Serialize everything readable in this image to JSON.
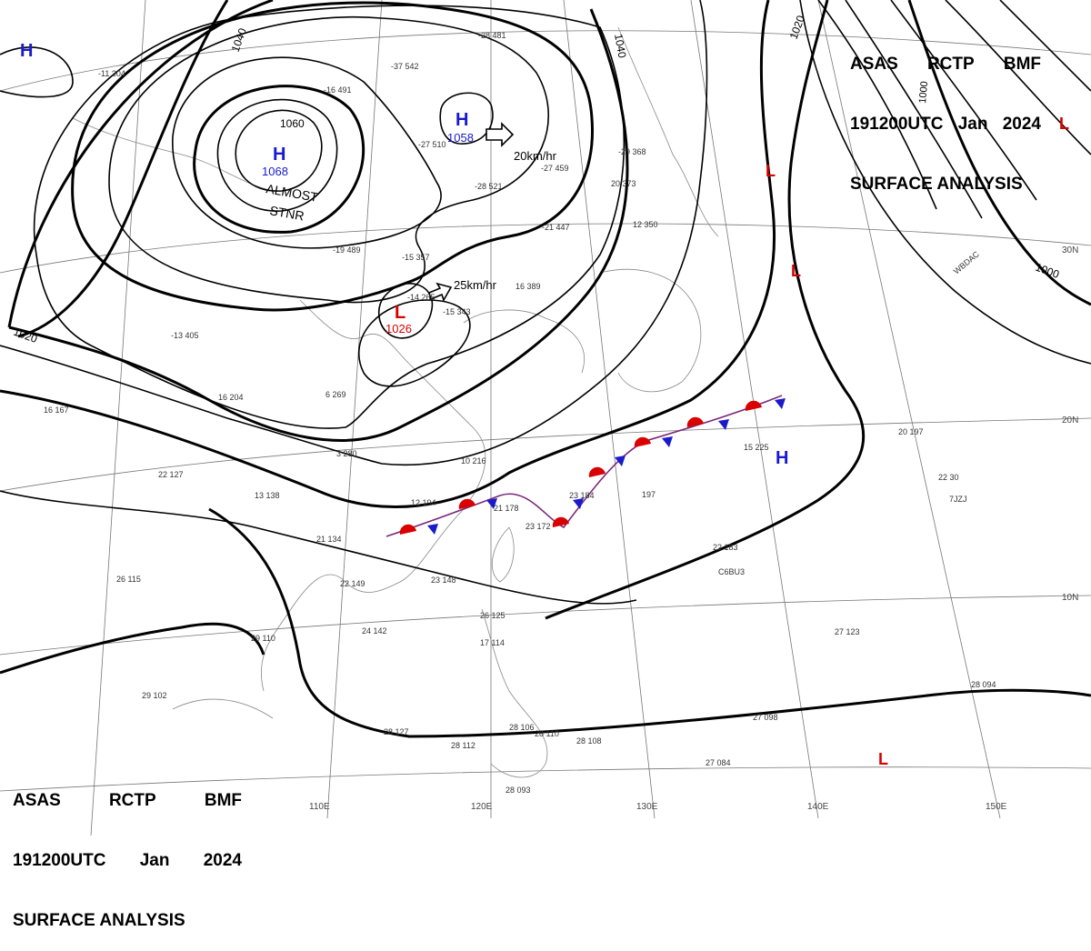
{
  "header": {
    "line1": [
      "ASAS",
      "RCTP",
      "BMF"
    ],
    "line2": [
      "191200UTC",
      "Jan",
      "2024"
    ],
    "line3": "SURFACE ANALYSIS"
  },
  "isobar_labels": [
    "1040",
    "1040",
    "1020",
    "1020",
    "1000",
    "1000",
    "1060"
  ],
  "pressure_centers": {
    "H_main": {
      "letter": "H",
      "value": "1068",
      "note1": "ALMOST",
      "note2": "STNR"
    },
    "H_north": {
      "letter": "H",
      "value": "1058",
      "motion": "20km/hr"
    },
    "L_mid": {
      "letter": "L",
      "value": "1026",
      "motion": "25km/hr"
    },
    "H_topleft": {
      "letter": "H"
    },
    "H_east": {
      "letter": "H"
    },
    "L_marks": [
      "L",
      "L",
      "L",
      "L"
    ]
  },
  "lat_labels": [
    "30N",
    "20N",
    "10N"
  ],
  "lon_labels": [
    "110E",
    "120E",
    "130E",
    "140E",
    "150E"
  ],
  "stations": [
    "-11 304",
    "-37 542",
    "-16 491",
    "-27 510",
    "-28 521",
    "-28 481",
    "-29 368",
    "-27 459",
    "20 373",
    "-21 447",
    "12 350",
    "16 389",
    "-19 489",
    "-15 357",
    "-14 265",
    "-15 343",
    "-13 405",
    "6 269",
    "16 204",
    "3 280",
    "10 216",
    "12 194",
    "21 178",
    "23 184",
    "23 172",
    "197",
    "15 225",
    "20 197",
    "22 127",
    "16 167",
    "13 138",
    "21 134",
    "26 115",
    "22 149",
    "23 148",
    "24 142",
    "29 110",
    "29 102",
    "26 125",
    "17 114",
    "28 127",
    "28 112",
    "28 106",
    "28 110",
    "28 108",
    "28 093",
    "27 098",
    "27 084",
    "27 123",
    "28 094",
    "22 183",
    "22 30",
    "C6BU3",
    "7JZJ",
    "WBDAC"
  ],
  "colors": {
    "high": "#1a1acc",
    "low": "#d80000",
    "warm_front": "#d80000",
    "cold_front": "#1a1acc"
  }
}
